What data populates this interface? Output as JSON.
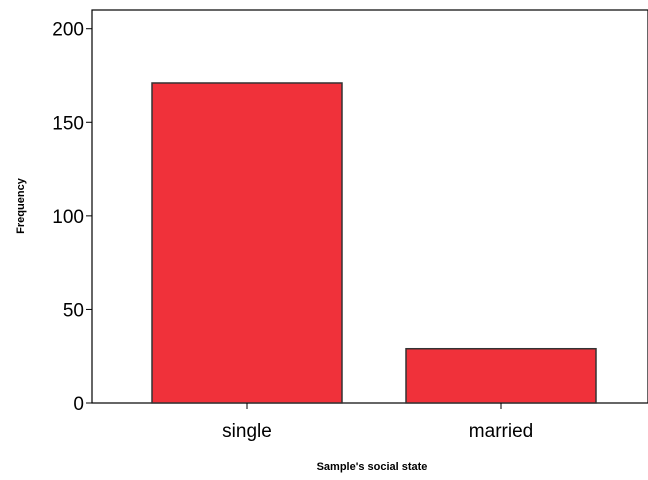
{
  "chart_data": {
    "type": "bar",
    "title": "",
    "xlabel": "Sample's social state",
    "ylabel": "Frequency",
    "categories": [
      "single",
      "married"
    ],
    "values": [
      171,
      29
    ],
    "ylim": [
      0,
      210
    ],
    "yticks": [
      0,
      50,
      100,
      150,
      200
    ],
    "ytick_labels": [
      "0",
      "50",
      "100",
      "150",
      "200"
    ],
    "grid": false,
    "legend": "none",
    "bar_color": "#f0313a",
    "bar_edge_color": "#333333"
  }
}
